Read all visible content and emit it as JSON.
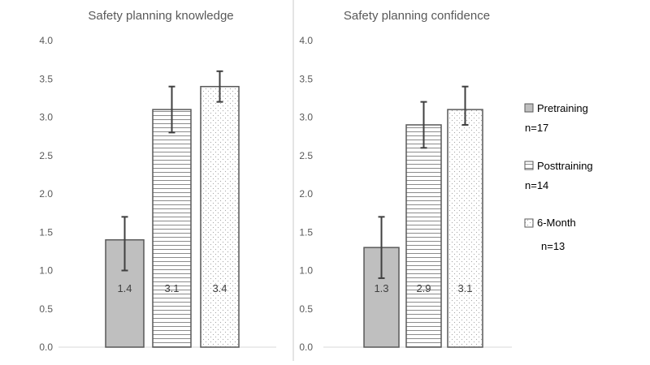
{
  "chart_data": [
    {
      "type": "bar",
      "title": "Safety planning knowledge",
      "categories": [
        "Pretraining",
        "Posttraining",
        "6-Month"
      ],
      "values": [
        1.4,
        3.1,
        3.4
      ],
      "value_labels": [
        "1.4",
        "3.1",
        "3.4"
      ],
      "error_low": [
        1.0,
        2.8,
        3.2
      ],
      "error_high": [
        1.7,
        3.4,
        3.6
      ],
      "ylim": [
        0,
        4
      ],
      "yticks": [
        "0.0",
        "0.5",
        "1.0",
        "1.5",
        "2.0",
        "2.5",
        "3.0",
        "3.5",
        "4.0"
      ],
      "ytick_values": [
        0,
        0.5,
        1,
        1.5,
        2,
        2.5,
        3,
        3.5,
        4
      ],
      "xlabel": "",
      "ylabel": "",
      "grid": false
    },
    {
      "type": "bar",
      "title": "Safety planning confidence",
      "categories": [
        "Pretraining",
        "Posttraining",
        "6-Month"
      ],
      "values": [
        1.3,
        2.9,
        3.1
      ],
      "value_labels": [
        "1.3",
        "2.9",
        "3.1"
      ],
      "error_low": [
        0.9,
        2.6,
        2.9
      ],
      "error_high": [
        1.7,
        3.2,
        3.4
      ],
      "ylim": [
        0,
        4
      ],
      "yticks": [
        "0.0",
        "0.5",
        "1.0",
        "1.5",
        "2.0",
        "2.5",
        "3.0",
        "3.5",
        "4.0"
      ],
      "ytick_values": [
        0,
        0.5,
        1,
        1.5,
        2,
        2.5,
        3,
        3.5,
        4
      ],
      "xlabel": "",
      "ylabel": "",
      "grid": false
    }
  ],
  "legend": {
    "placement": "right",
    "items": [
      {
        "label": "Pretraining",
        "n": "n=17",
        "pattern": "solid"
      },
      {
        "label": "Posttraining",
        "n": "n=14",
        "pattern": "hlines"
      },
      {
        "label": "6-Month",
        "n": "n=13",
        "pattern": "dots"
      }
    ]
  },
  "colors": {
    "solid_fill": "#bfbfbf",
    "bar_stroke": "#595959",
    "pattern_stroke": "#8c8c8c",
    "pattern_light_stroke": "#a6a6a6",
    "axis_line": "#d9d9d9",
    "divider": "#c8c8c8",
    "text": "#595959",
    "label_text": "#404040",
    "error_bar": "#404040",
    "background": "#ffffff"
  }
}
